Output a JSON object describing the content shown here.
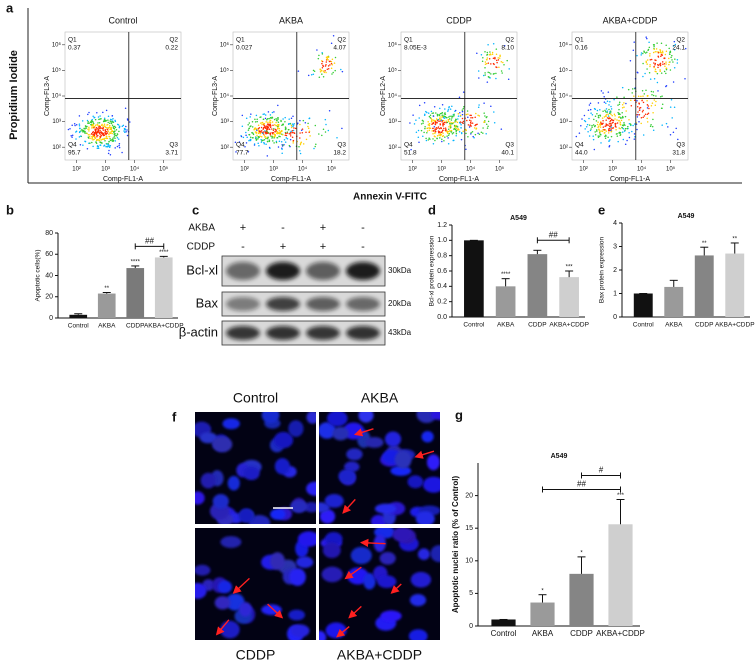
{
  "panel_labels": [
    "a",
    "b",
    "c",
    "d",
    "e",
    "f",
    "g"
  ],
  "flow": {
    "y_title": "Propidium Iodide",
    "x_title": "Annexin V-FITC",
    "xticks": [
      "10²",
      "10³",
      "10⁴",
      "10⁵"
    ],
    "yticks": [
      "10²",
      "10³",
      "10⁴",
      "10⁵",
      "10⁶"
    ],
    "plots": [
      {
        "title": "Control",
        "x_label": "Comp-FL1-A",
        "y_label": "Comp-FL3-A",
        "quadrants": [
          {
            "name": "Q1",
            "value": "0.37"
          },
          {
            "name": "Q2",
            "value": "0.22"
          },
          {
            "name": "Q4",
            "value": "95.7"
          },
          {
            "name": "Q3",
            "value": "3.71"
          }
        ]
      },
      {
        "title": "AKBA",
        "x_label": "Comp-FL1-A",
        "y_label": "Comp-FL3-A",
        "quadrants": [
          {
            "name": "Q1",
            "value": "0.027"
          },
          {
            "name": "Q2",
            "value": "4.07"
          },
          {
            "name": "Q4",
            "value": "77.7"
          },
          {
            "name": "Q3",
            "value": "18.2"
          }
        ]
      },
      {
        "title": "CDDP",
        "x_label": "Comp-FL1-A",
        "y_label": "Comp-FL2-A",
        "quadrants": [
          {
            "name": "Q1",
            "value": "8.05E-3"
          },
          {
            "name": "Q2",
            "value": "8.10"
          },
          {
            "name": "Q4",
            "value": "51.8"
          },
          {
            "name": "Q3",
            "value": "40.1"
          }
        ]
      },
      {
        "title": "AKBA+CDDP",
        "x_label": "Comp-FL1-A",
        "y_label": "Comp-FL2-A",
        "quadrants": [
          {
            "name": "Q1",
            "value": "0.16"
          },
          {
            "name": "Q2",
            "value": "24.1"
          },
          {
            "name": "Q4",
            "value": "44.0"
          },
          {
            "name": "Q3",
            "value": "31.8"
          }
        ]
      }
    ]
  },
  "blot": {
    "treatments": [
      {
        "name": "AKBA",
        "signs": [
          "+",
          "-",
          "+",
          "-"
        ]
      },
      {
        "name": "CDDP",
        "signs": [
          "-",
          "+",
          "+",
          "-"
        ]
      }
    ],
    "bands": [
      {
        "name": "Bcl-xl",
        "size": "30kDa"
      },
      {
        "name": "Bax",
        "size": "20kDa"
      },
      {
        "name": "β-actin",
        "size": "43kDa"
      }
    ]
  },
  "images": {
    "labels": [
      "Control",
      "AKBA",
      "CDDP",
      "AKBA+CDDP"
    ]
  },
  "chart_data": [
    {
      "type": "bar",
      "y_label": "Apoptotic cells(%)",
      "categories": [
        "Control",
        "AKBA",
        "CDDP",
        "AKBA+CDDP"
      ],
      "values": [
        3,
        23,
        47,
        57
      ],
      "errors": [
        1,
        1,
        2,
        1
      ],
      "colors": [
        "#111111",
        "#9a9a9a",
        "#7a7a7a",
        "#cfcfcf"
      ],
      "annotations": [
        null,
        "**",
        "****",
        "****"
      ],
      "brackets": [
        {
          "label": "##",
          "from": 2,
          "to": 3
        }
      ],
      "ylim": [
        0,
        80
      ],
      "yticks": [
        0,
        20,
        40,
        60,
        80
      ]
    },
    {
      "type": "bar",
      "title": "A549",
      "y_label": "Bcl-xl protein expression",
      "categories": [
        "Control",
        "AKBA",
        "CDDP",
        "AKBA+CDDP"
      ],
      "values": [
        1.0,
        0.4,
        0.82,
        0.52
      ],
      "errors": [
        0,
        0.1,
        0.05,
        0.08
      ],
      "colors": [
        "#111111",
        "#9a9a9a",
        "#858585",
        "#cfcfcf"
      ],
      "annotations": [
        null,
        "****",
        null,
        "***"
      ],
      "brackets": [
        {
          "label": "##",
          "from": 2,
          "to": 3
        }
      ],
      "ylim": [
        0,
        1.2
      ],
      "yticks": [
        {
          "value": 0,
          "label": "0.0"
        },
        {
          "value": 0.2,
          "label": "0.2"
        },
        {
          "value": 0.4,
          "label": "0.4"
        },
        {
          "value": 0.6,
          "label": "0.6"
        },
        {
          "value": 0.8,
          "label": "0.8"
        },
        {
          "value": 1,
          "label": "1.0"
        },
        {
          "value": 1.2,
          "label": "1.2"
        }
      ]
    },
    {
      "type": "bar",
      "title": "A549",
      "y_label": "Bax protein expression",
      "categories": [
        "Control",
        "AKBA",
        "CDDP",
        "AKBA+CDDP"
      ],
      "values": [
        1.0,
        1.28,
        2.62,
        2.7
      ],
      "errors": [
        0,
        0.28,
        0.35,
        0.45
      ],
      "colors": [
        "#111111",
        "#9a9a9a",
        "#858585",
        "#cfcfcf"
      ],
      "annotations": [
        null,
        null,
        "**",
        "**"
      ],
      "ylim": [
        0,
        4
      ],
      "yticks": [
        0,
        1,
        2,
        3,
        4
      ]
    },
    {
      "type": "bar",
      "title": "A549",
      "y_label": "Apoptotic nuclei ratio (% of Control)",
      "categories": [
        "Control",
        "AKBA",
        "CDDP",
        "AKBA+CDDP"
      ],
      "values": [
        1.0,
        3.6,
        8.0,
        15.6
      ],
      "errors": [
        0,
        1.2,
        2.6,
        3.8
      ],
      "colors": [
        "#111111",
        "#9a9a9a",
        "#858585",
        "#cfcfcf"
      ],
      "annotations": [
        null,
        "*",
        "*",
        "***"
      ],
      "brackets": [
        {
          "label": "##",
          "from": 1,
          "to": 3
        },
        {
          "label": "#",
          "from": 2,
          "to": 3
        }
      ],
      "ylim": [
        0,
        25
      ],
      "yticks": [
        0,
        5,
        10,
        15,
        20
      ]
    }
  ]
}
